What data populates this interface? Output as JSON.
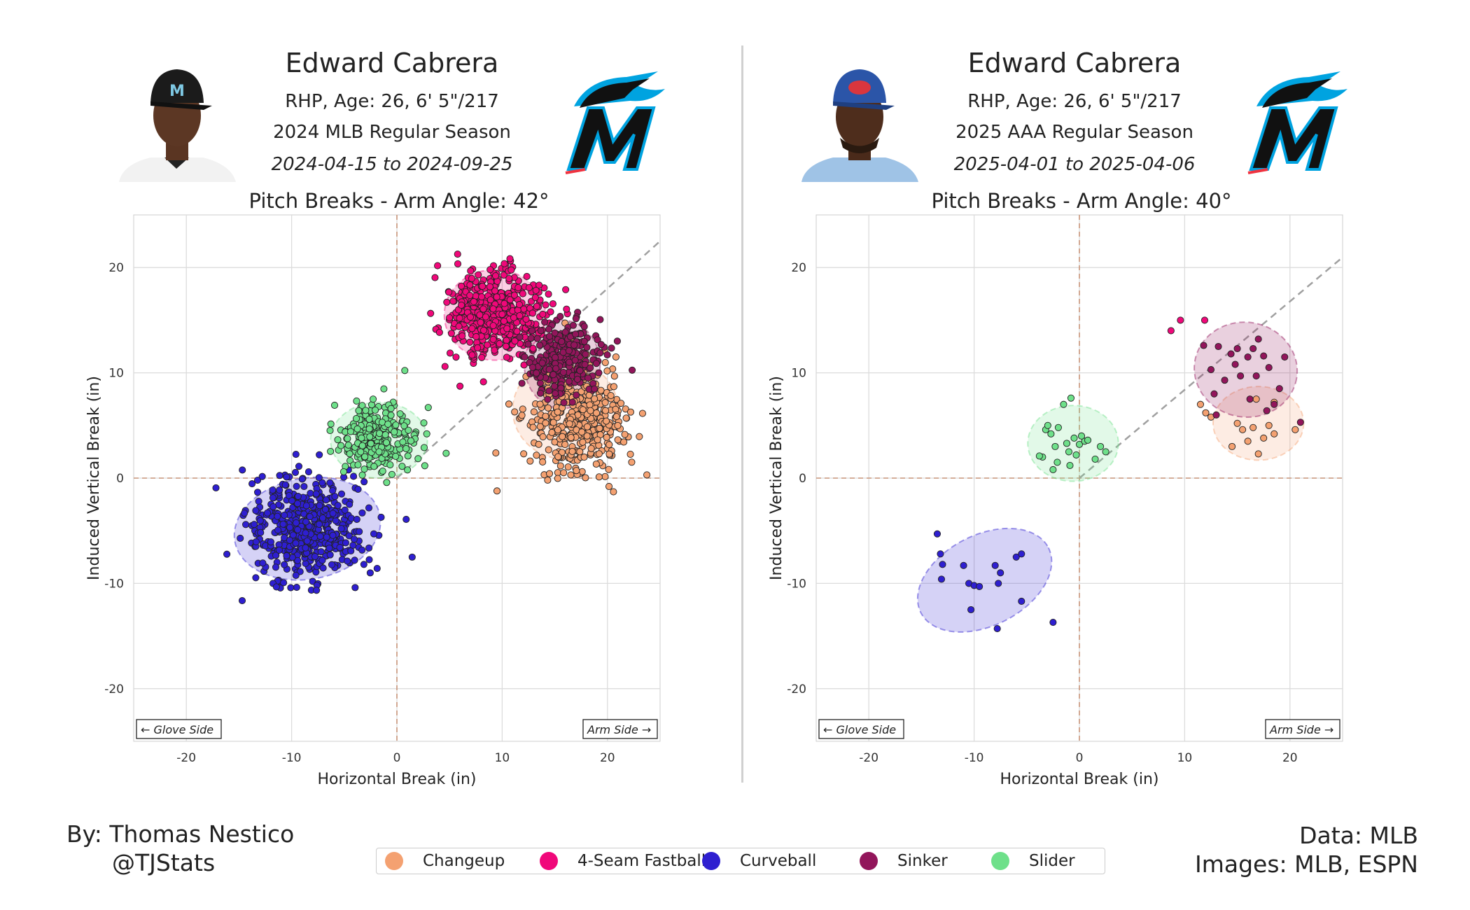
{
  "panels": [
    {
      "name": "Edward Cabrera",
      "info": "RHP, Age: 26, 6' 5\"/217",
      "season": "2024 MLB Regular Season",
      "dates": "2024-04-15 to 2024-09-25",
      "chart_title": "Pitch Breaks - Arm Angle: 42°",
      "cap_color": "#1b1b1b",
      "jersey_color": "#f2f2f2"
    },
    {
      "name": "Edward Cabrera",
      "info": "RHP, Age: 26, 6' 5\"/217",
      "season": "2025 AAA Regular Season",
      "dates": "2025-04-01 to 2025-04-06",
      "chart_title": "Pitch Breaks - Arm Angle: 40°",
      "cap_color": "#2b55a8",
      "jersey_color": "#9fc3e6"
    }
  ],
  "legend": {
    "items": [
      {
        "label": "Changeup",
        "color": "#f4a171"
      },
      {
        "label": "4-Seam Fastball",
        "color": "#f0087a"
      },
      {
        "label": "Curveball",
        "color": "#2e1fd0"
      },
      {
        "label": "Sinker",
        "color": "#92155b"
      },
      {
        "label": "Slider",
        "color": "#6ee08a"
      }
    ]
  },
  "credits": {
    "by": "By: Thomas Nestico",
    "handle": "@TJStats",
    "data": "Data: MLB",
    "images": "Images: MLB, ESPN"
  },
  "chart_data": [
    {
      "type": "scatter",
      "title": "Pitch Breaks - Arm Angle: 42°",
      "xlabel": "Horizontal Break (in)",
      "ylabel": "Induced Vertical Break (in)",
      "xlim": [
        -25,
        25
      ],
      "ylim": [
        -25,
        25
      ],
      "xticks": [
        -20,
        -10,
        0,
        10,
        20
      ],
      "yticks": [
        -20,
        -10,
        0,
        10,
        20
      ],
      "grid": true,
      "arm_angle_deg": 42,
      "corner_labels": {
        "left": "← Glove Side",
        "right": "Arm Side →"
      },
      "series": [
        {
          "name": "Changeup",
          "color": "#f4a171",
          "center": [
            17,
            5.5
          ],
          "spread": [
            2.3,
            2.5
          ],
          "count": 420,
          "ellipse": {
            "cx": 16,
            "cy": 6.5,
            "rx": 5.0,
            "ry": 4.7,
            "angle": 0
          }
        },
        {
          "name": "4-Seam Fastball",
          "color": "#f0087a",
          "center": [
            9.3,
            15.7
          ],
          "spread": [
            2.2,
            2.0
          ],
          "count": 500,
          "ellipse": {
            "cx": 9.3,
            "cy": 15.5,
            "rx": 4.8,
            "ry": 4.3,
            "angle": 0
          }
        },
        {
          "name": "Curveball",
          "color": "#2e1fd0",
          "center": [
            -8.5,
            -4.8
          ],
          "spread": [
            2.8,
            2.4
          ],
          "count": 520,
          "ellipse": {
            "cx": -8.5,
            "cy": -4.8,
            "rx": 7.0,
            "ry": 4.8,
            "angle": 10
          }
        },
        {
          "name": "Sinker",
          "color": "#92155b",
          "center": [
            15.7,
            11.2
          ],
          "spread": [
            1.7,
            1.8
          ],
          "count": 260,
          "ellipse": {
            "cx": 15.7,
            "cy": 10.8,
            "rx": 3.6,
            "ry": 4.2,
            "angle": 0
          }
        },
        {
          "name": "Slider",
          "color": "#6ee08a",
          "center": [
            -1.8,
            3.8
          ],
          "spread": [
            2.0,
            1.6
          ],
          "count": 260,
          "ellipse": {
            "cx": -1.7,
            "cy": 3.6,
            "rx": 4.6,
            "ry": 3.6,
            "angle": 0
          }
        }
      ]
    },
    {
      "type": "scatter",
      "title": "Pitch Breaks - Arm Angle: 40°",
      "xlabel": "Horizontal Break (in)",
      "ylabel": "Induced Vertical Break (in)",
      "xlim": [
        -25,
        25
      ],
      "ylim": [
        -25,
        25
      ],
      "xticks": [
        -20,
        -10,
        0,
        10,
        20
      ],
      "yticks": [
        -20,
        -10,
        0,
        10,
        20
      ],
      "grid": true,
      "arm_angle_deg": 40,
      "corner_labels": {
        "left": "← Glove Side",
        "right": "Arm Side →"
      },
      "series": [
        {
          "name": "Changeup",
          "color": "#f4a171",
          "points": [
            [
              11.5,
              7
            ],
            [
              12,
              6.2
            ],
            [
              12.5,
              5.8
            ],
            [
              14.5,
              3
            ],
            [
              15,
              5.2
            ],
            [
              15.5,
              4.6
            ],
            [
              16,
              3.5
            ],
            [
              16.5,
              4.8
            ],
            [
              16.8,
              7.5
            ],
            [
              17,
              2.3
            ],
            [
              17.5,
              3.8
            ],
            [
              18,
              5
            ],
            [
              18.5,
              4.2
            ],
            [
              18.5,
              7.2
            ],
            [
              20.5,
              4.6
            ]
          ],
          "ellipse": {
            "cx": 17,
            "cy": 5.2,
            "rx": 4.3,
            "ry": 3.5,
            "angle": 0
          }
        },
        {
          "name": "4-Seam Fastball",
          "color": "#f0087a",
          "points": [
            [
              8.7,
              14
            ],
            [
              9.6,
              15
            ],
            [
              11.9,
              15
            ]
          ],
          "ellipse": null
        },
        {
          "name": "Curveball",
          "color": "#2e1fd0",
          "points": [
            [
              -13.5,
              -5.3
            ],
            [
              -13.2,
              -7.2
            ],
            [
              -13,
              -8.2
            ],
            [
              -13.1,
              -9.6
            ],
            [
              -11,
              -8.3
            ],
            [
              -10.5,
              -10
            ],
            [
              -10,
              -10.2
            ],
            [
              -9.5,
              -10.3
            ],
            [
              -8,
              -8.3
            ],
            [
              -7.7,
              -10
            ],
            [
              -7.5,
              -9
            ],
            [
              -6,
              -7.5
            ],
            [
              -5.5,
              -7.2
            ],
            [
              -10.3,
              -12.5
            ],
            [
              -7.8,
              -14.3
            ],
            [
              -5.5,
              -11.7
            ],
            [
              -2.5,
              -13.7
            ]
          ],
          "ellipse": {
            "cx": -9,
            "cy": -9.7,
            "rx": 6.8,
            "ry": 4.3,
            "angle": 27
          }
        },
        {
          "name": "Sinker",
          "color": "#92155b",
          "points": [
            [
              11.8,
              12.6
            ],
            [
              12.5,
              10.3
            ],
            [
              12.8,
              8
            ],
            [
              13.2,
              12.5
            ],
            [
              13.8,
              9.3
            ],
            [
              14.4,
              11.8
            ],
            [
              14.8,
              10.8
            ],
            [
              15,
              12.3
            ],
            [
              15.3,
              9.7
            ],
            [
              16,
              11.5
            ],
            [
              16.2,
              7.5
            ],
            [
              16.5,
              12.3
            ],
            [
              16.8,
              9.7
            ],
            [
              17,
              13.2
            ],
            [
              17.5,
              11.6
            ],
            [
              18,
              10.5
            ],
            [
              18.5,
              7
            ],
            [
              19,
              8.5
            ],
            [
              19.5,
              11.5
            ],
            [
              17.8,
              6.4
            ],
            [
              13,
              6
            ],
            [
              21,
              5.3
            ]
          ],
          "ellipse": {
            "cx": 15.8,
            "cy": 10.3,
            "rx": 4.9,
            "ry": 4.5,
            "angle": -10
          }
        },
        {
          "name": "Slider",
          "color": "#6ee08a",
          "points": [
            [
              -3.5,
              2
            ],
            [
              -3.2,
              4.6
            ],
            [
              -3,
              5
            ],
            [
              -2.7,
              4.2
            ],
            [
              -2.3,
              3
            ],
            [
              -2,
              4.8
            ],
            [
              -1.5,
              7
            ],
            [
              -1.2,
              3.3
            ],
            [
              -1,
              2.5
            ],
            [
              -0.8,
              7.6
            ],
            [
              -0.5,
              3.8
            ],
            [
              -0.3,
              2.2
            ],
            [
              0,
              3.2
            ],
            [
              0.5,
              3.5
            ],
            [
              0.8,
              3.6
            ],
            [
              1.5,
              1.8
            ],
            [
              2,
              3
            ],
            [
              2.5,
              2.5
            ],
            [
              -3.8,
              2.1
            ],
            [
              -2.5,
              0.8
            ],
            [
              -2.1,
              1.5
            ],
            [
              0.2,
              4
            ],
            [
              -0.9,
              1.2
            ]
          ],
          "ellipse": {
            "cx": -0.6,
            "cy": 3.3,
            "rx": 4.3,
            "ry": 3.6,
            "angle": 0
          }
        }
      ]
    }
  ]
}
